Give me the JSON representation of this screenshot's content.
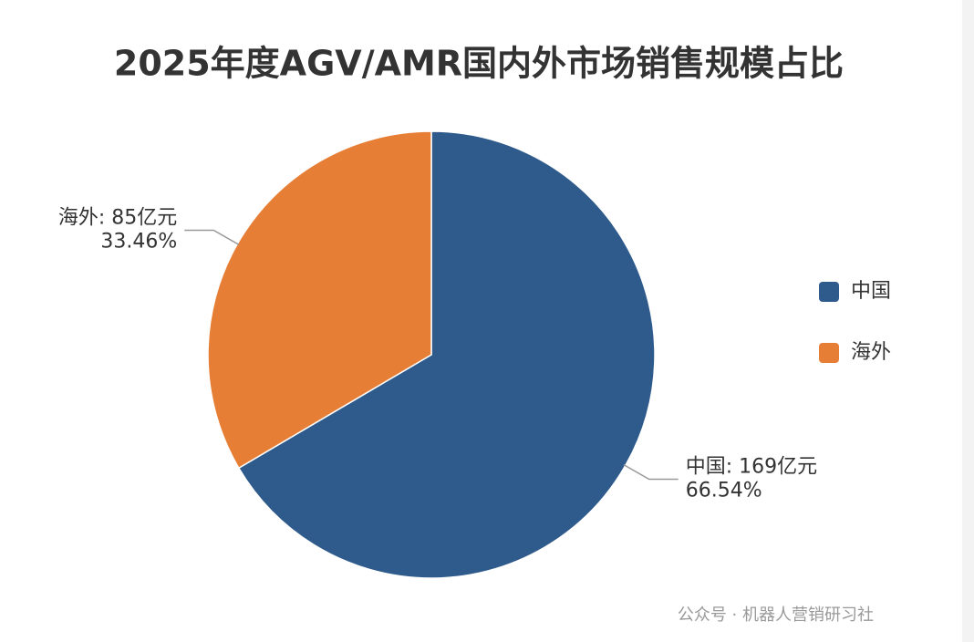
{
  "chart_data": {
    "type": "pie",
    "title": "2025年度AGV/AMR国内外市场销售规模占比",
    "categories": [
      "中国",
      "海外"
    ],
    "values": [
      169,
      85
    ],
    "value_labels": [
      "中国: 169亿元",
      "海外: 85亿元"
    ],
    "percents": [
      66.54,
      33.46
    ],
    "percent_labels": [
      "66.54%",
      "33.46%"
    ],
    "colors": [
      "#2e5a8c",
      "#e77e35"
    ],
    "legend": "right",
    "watermark": "公众号 · 机器人营销研习社"
  }
}
